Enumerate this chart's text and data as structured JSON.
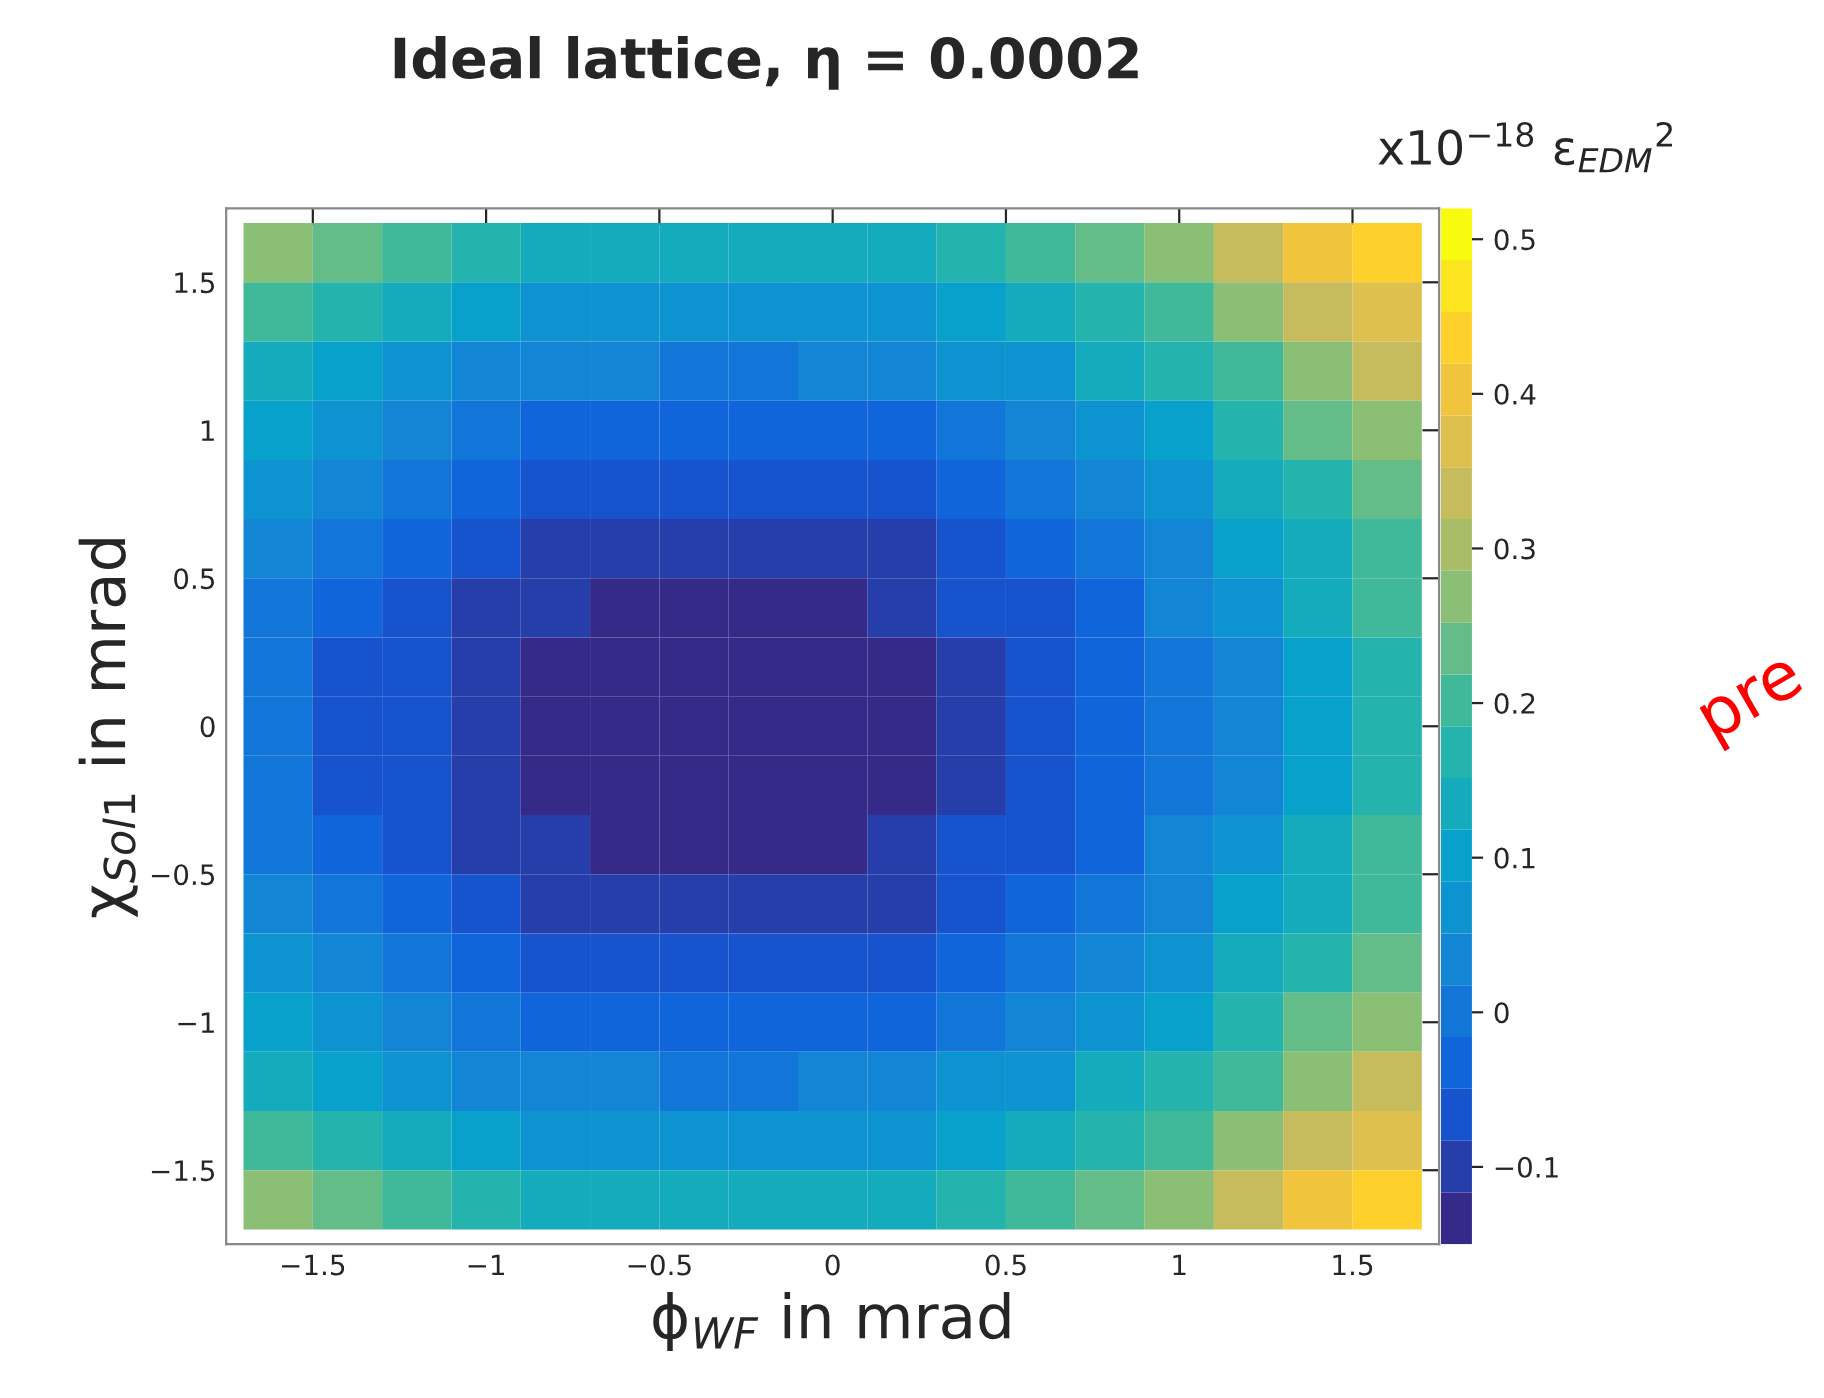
{
  "chart_data": {
    "type": "heatmap",
    "title": "Ideal lattice, η = 0.0002",
    "xlabel": "ϕ$_{WF}$ in mrad",
    "ylabel": "χ$_{Sol1}$ in mrad",
    "clabel": "x10$^{−18}$ ε$_{EDM}$$^{2}$",
    "annotations": [
      "pre"
    ],
    "x": [
      -1.6,
      -1.4,
      -1.2,
      -1.0,
      -0.8,
      -0.6,
      -0.4,
      -0.2,
      0.0,
      0.2,
      0.4,
      0.6,
      0.8,
      1.0,
      1.2,
      1.4,
      1.6
    ],
    "y": [
      1.6,
      1.4,
      1.2,
      1.0,
      0.8,
      0.6,
      0.4,
      0.2,
      0.0,
      -0.2,
      -0.4,
      -0.6,
      -0.8,
      -1.0,
      -1.2,
      -1.4,
      -1.6
    ],
    "cells": [
      [
        0.27,
        0.23,
        0.2,
        0.17,
        0.15,
        0.14,
        0.13,
        0.13,
        0.14,
        0.15,
        0.18,
        0.2,
        0.24,
        0.28,
        0.33,
        0.39,
        0.45
      ],
      [
        0.2,
        0.16,
        0.13,
        0.1,
        0.08,
        0.07,
        0.06,
        0.06,
        0.07,
        0.08,
        0.11,
        0.13,
        0.17,
        0.21,
        0.26,
        0.32,
        0.38
      ],
      [
        0.15,
        0.11,
        0.08,
        0.05,
        0.03,
        0.02,
        0.01,
        0.01,
        0.02,
        0.03,
        0.06,
        0.08,
        0.12,
        0.16,
        0.21,
        0.27,
        0.33
      ],
      [
        0.1,
        0.06,
        0.03,
        0.0,
        -0.02,
        -0.03,
        -0.04,
        -0.04,
        -0.03,
        -0.02,
        0.01,
        0.03,
        0.07,
        0.11,
        0.16,
        0.22,
        0.28
      ],
      [
        0.06,
        0.02,
        -0.01,
        -0.04,
        -0.06,
        -0.07,
        -0.08,
        -0.08,
        -0.07,
        -0.06,
        -0.03,
        -0.01,
        0.03,
        0.07,
        0.12,
        0.18,
        0.24
      ],
      [
        0.03,
        -0.01,
        -0.04,
        -0.07,
        -0.09,
        -0.1,
        -0.11,
        -0.11,
        -0.1,
        -0.09,
        -0.06,
        -0.04,
        0.0,
        0.04,
        0.09,
        0.15,
        0.21
      ],
      [
        0.01,
        -0.03,
        -0.06,
        -0.09,
        -0.11,
        -0.12,
        -0.13,
        -0.13,
        -0.12,
        -0.11,
        -0.08,
        -0.06,
        -0.02,
        0.02,
        0.07,
        0.13,
        0.19
      ],
      [
        -0.01,
        -0.05,
        -0.08,
        -0.11,
        -0.13,
        -0.14,
        -0.15,
        -0.15,
        -0.14,
        -0.13,
        -0.1,
        -0.08,
        -0.04,
        0.0,
        0.05,
        0.11,
        0.17
      ],
      [
        -0.01,
        -0.05,
        -0.08,
        -0.11,
        -0.13,
        -0.14,
        -0.15,
        -0.15,
        -0.14,
        -0.13,
        -0.1,
        -0.08,
        -0.04,
        0.0,
        0.05,
        0.11,
        0.17
      ],
      [
        -0.01,
        -0.05,
        -0.08,
        -0.11,
        -0.13,
        -0.14,
        -0.15,
        -0.15,
        -0.14,
        -0.13,
        -0.1,
        -0.08,
        -0.04,
        0.0,
        0.05,
        0.11,
        0.17
      ],
      [
        0.01,
        -0.03,
        -0.06,
        -0.09,
        -0.11,
        -0.12,
        -0.13,
        -0.13,
        -0.12,
        -0.11,
        -0.08,
        -0.06,
        -0.02,
        0.02,
        0.07,
        0.13,
        0.19
      ],
      [
        0.03,
        -0.01,
        -0.04,
        -0.07,
        -0.09,
        -0.1,
        -0.11,
        -0.11,
        -0.1,
        -0.09,
        -0.06,
        -0.04,
        0.0,
        0.04,
        0.09,
        0.15,
        0.21
      ],
      [
        0.06,
        0.02,
        -0.01,
        -0.04,
        -0.06,
        -0.07,
        -0.08,
        -0.08,
        -0.07,
        -0.06,
        -0.03,
        -0.01,
        0.03,
        0.07,
        0.12,
        0.18,
        0.24
      ],
      [
        0.1,
        0.06,
        0.03,
        0.0,
        -0.02,
        -0.03,
        -0.04,
        -0.04,
        -0.03,
        -0.02,
        0.01,
        0.03,
        0.07,
        0.11,
        0.16,
        0.22,
        0.28
      ],
      [
        0.15,
        0.11,
        0.08,
        0.05,
        0.03,
        0.02,
        0.01,
        0.01,
        0.02,
        0.03,
        0.06,
        0.08,
        0.12,
        0.16,
        0.21,
        0.27,
        0.33
      ],
      [
        0.2,
        0.16,
        0.13,
        0.1,
        0.08,
        0.07,
        0.06,
        0.06,
        0.07,
        0.08,
        0.11,
        0.13,
        0.17,
        0.21,
        0.26,
        0.32,
        0.38
      ],
      [
        0.27,
        0.23,
        0.2,
        0.17,
        0.15,
        0.14,
        0.13,
        0.13,
        0.14,
        0.15,
        0.18,
        0.2,
        0.24,
        0.28,
        0.33,
        0.39,
        0.45
      ]
    ],
    "xlim": [
      -1.75,
      1.75
    ],
    "ylim": [
      -1.75,
      1.75
    ],
    "xticks": [
      {
        "value": -1.5,
        "label": "−1.5"
      },
      {
        "value": -1,
        "label": "−1"
      },
      {
        "value": -0.5,
        "label": "−0.5"
      },
      0,
      0.5,
      1,
      1.5
    ],
    "yticks": [
      {
        "value": -1.5,
        "label": "−1.5"
      },
      {
        "value": -1,
        "label": "−1"
      },
      {
        "value": -0.5,
        "label": "−0.5"
      },
      0,
      0.5,
      1,
      1.5
    ],
    "clim": [
      -0.15,
      0.52
    ],
    "cticks": [
      {
        "value": -0.1,
        "label": "−0.1"
      },
      0,
      0.1,
      0.2,
      0.3,
      0.4,
      0.5
    ],
    "grid": false
  }
}
